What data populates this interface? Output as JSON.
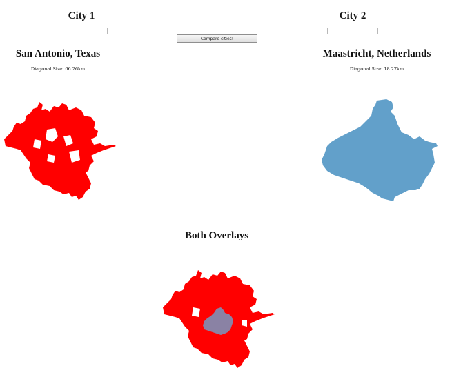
{
  "city1": {
    "heading": "City 1",
    "input_value": "",
    "name": "San Antonio, Texas",
    "diagonal_label": "Diagonal Size: 66.26km",
    "shape_color": "#ff0000"
  },
  "city2": {
    "heading": "City 2",
    "input_value": "",
    "name": "Maastricht, Netherlands",
    "diagonal_label": "Diagonal Size: 18.27km",
    "shape_color": "#62a0ca"
  },
  "compare_button": {
    "label": "Compare cities!"
  },
  "overlay": {
    "title": "Both Overlays",
    "overlap_color": "#8a82a4"
  }
}
